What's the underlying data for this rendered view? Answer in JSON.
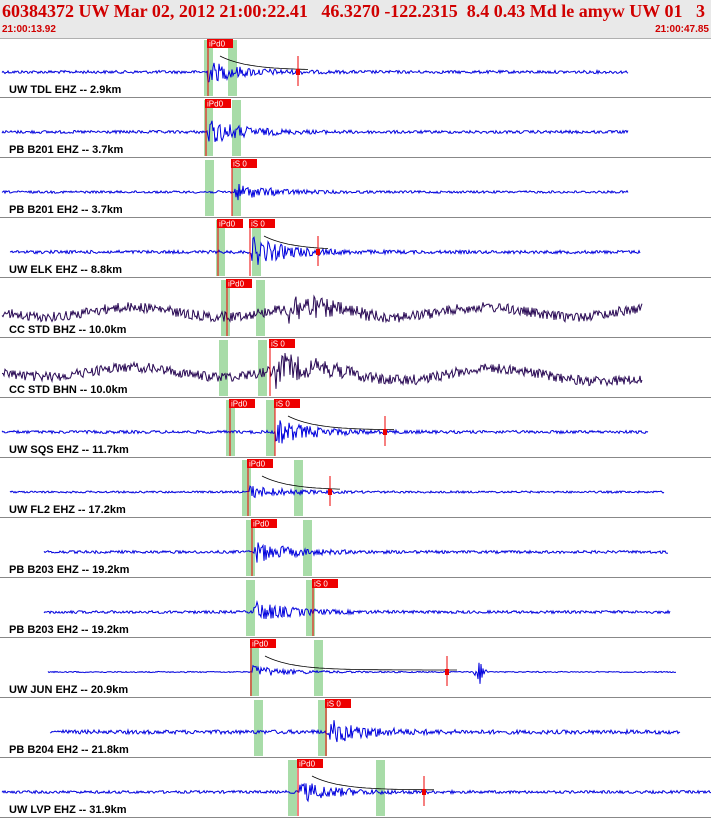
{
  "header": {
    "title": "60384372 UW Mar 02, 2012 21:00:22.41   46.3270 -122.2315  8.4 0.43 Md le amyw UW 01   3",
    "time_start": "21:00:13.92",
    "time_end": "21:00:47.85"
  },
  "colors": {
    "header_bg": "#e9e9e9",
    "header_text": "#d00000",
    "trace_blue": "#0000dd",
    "trace_dark": "#2a0a55",
    "pick_red": "#ee0000",
    "green_window": "#a8dca8",
    "separator": "#888888"
  },
  "traces": [
    {
      "label": "UW TDL EHZ -- 2.9km",
      "color": "blue",
      "amp": 1.5,
      "start": 2,
      "end": 628,
      "onset": 208,
      "burst": 10,
      "picks": [
        {
          "x": 208,
          "text": "iPd0"
        }
      ],
      "greens": [
        208,
        232
      ],
      "marks": [
        298
      ],
      "coda": true
    },
    {
      "label": "PB B201 EHZ -- 3.7km",
      "color": "blue",
      "amp": 1.5,
      "start": 2,
      "end": 628,
      "onset": 208,
      "burst": 12,
      "picks": [
        {
          "x": 206,
          "text": "iPd0"
        }
      ],
      "greens": [
        208,
        236
      ],
      "marks": [],
      "coda": false
    },
    {
      "label": "PB B201 EH2 -- 3.7km",
      "color": "blue",
      "amp": 1.2,
      "start": 2,
      "end": 628,
      "onset": 234,
      "burst": 8,
      "picks": [
        {
          "x": 232,
          "text": "iS 0"
        }
      ],
      "greens": [
        209,
        236
      ],
      "marks": [],
      "coda": false
    },
    {
      "label": "UW ELK EHZ -- 8.8km",
      "color": "blue",
      "amp": 1.6,
      "start": 10,
      "end": 640,
      "onset": 252,
      "burst": 14,
      "picks": [
        {
          "x": 218,
          "text": "iPd0"
        },
        {
          "x": 250,
          "text": "iS 0"
        }
      ],
      "greens": [
        220,
        256
      ],
      "marks": [
        318
      ],
      "coda": true
    },
    {
      "label": "CC STD BHZ -- 10.0km",
      "color": "dark",
      "amp": 5,
      "start": 2,
      "end": 642,
      "onset": 286,
      "burst": 14,
      "picks": [
        {
          "x": 227,
          "text": "iPd0"
        }
      ],
      "greens": [
        225,
        260
      ],
      "marks": [],
      "coda": false,
      "wavy": 8
    },
    {
      "label": "CC STD BHN -- 10.0km",
      "color": "dark",
      "amp": 5,
      "start": 2,
      "end": 642,
      "onset": 276,
      "burst": 14,
      "picks": [
        {
          "x": 270,
          "text": "iS 0"
        }
      ],
      "greens": [
        223,
        262
      ],
      "marks": [],
      "coda": false,
      "wavy": 8,
      "rise": true
    },
    {
      "label": "UW SQS EHZ -- 11.7km",
      "color": "blue",
      "amp": 1.5,
      "start": 2,
      "end": 648,
      "onset": 276,
      "burst": 12,
      "picks": [
        {
          "x": 230,
          "text": "iPd0"
        },
        {
          "x": 275,
          "text": "iS 0"
        }
      ],
      "greens": [
        230,
        270
      ],
      "marks": [
        385
      ],
      "coda": true
    },
    {
      "label": "UW FL2 EHZ -- 17.2km",
      "color": "blue",
      "amp": 1.0,
      "start": 10,
      "end": 664,
      "onset": 250,
      "burst": 6,
      "picks": [
        {
          "x": 248,
          "text": "iPd0"
        }
      ],
      "greens": [
        246,
        298
      ],
      "marks": [
        330
      ],
      "coda": true
    },
    {
      "label": "PB B203 EHZ -- 19.2km",
      "color": "blue",
      "amp": 1.4,
      "start": 44,
      "end": 668,
      "onset": 255,
      "burst": 10,
      "picks": [
        {
          "x": 252,
          "text": "iPd0"
        }
      ],
      "greens": [
        250,
        307
      ],
      "marks": [],
      "coda": false
    },
    {
      "label": "PB B203 EH2 -- 19.2km",
      "color": "blue",
      "amp": 1.4,
      "start": 44,
      "end": 670,
      "onset": 254,
      "burst": 10,
      "picks": [
        {
          "x": 313,
          "text": "iS 0"
        }
      ],
      "greens": [
        250,
        310
      ],
      "marks": [],
      "coda": false
    },
    {
      "label": "UW JUN EHZ -- 20.9km",
      "color": "blue",
      "amp": 0.6,
      "start": 48,
      "end": 676,
      "onset": 253,
      "burst": 6,
      "picks": [
        {
          "x": 251,
          "text": "iPd0"
        }
      ],
      "greens": [
        254,
        318
      ],
      "marks": [
        447
      ],
      "coda": true,
      "extra": 480
    },
    {
      "label": "PB B204 EH2 -- 21.8km",
      "color": "blue",
      "amp": 2.0,
      "start": 50,
      "end": 680,
      "onset": 328,
      "burst": 12,
      "picks": [
        {
          "x": 326,
          "text": "iS 0"
        }
      ],
      "greens": [
        258,
        322
      ],
      "marks": [],
      "coda": false
    },
    {
      "label": "UW LVP EHZ -- 31.9km",
      "color": "blue",
      "amp": 1.4,
      "start": 2,
      "end": 711,
      "onset": 300,
      "burst": 10,
      "picks": [
        {
          "x": 298,
          "text": "iPd0"
        }
      ],
      "greens": [
        292,
        380
      ],
      "marks": [
        424
      ],
      "coda": true
    }
  ]
}
